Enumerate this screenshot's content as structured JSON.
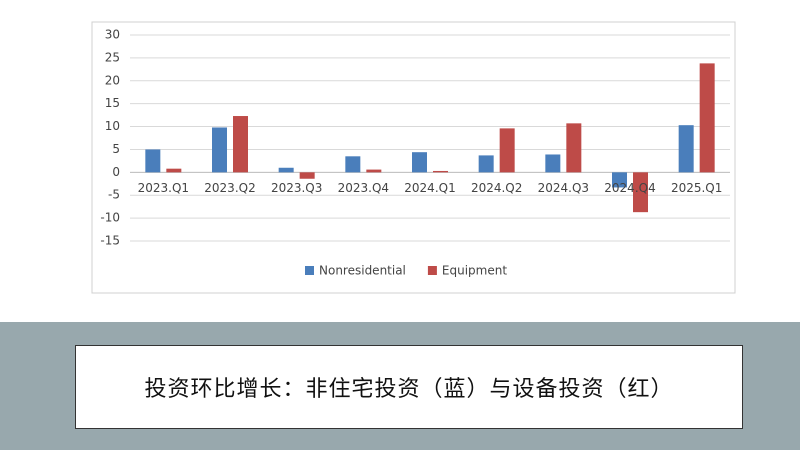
{
  "chart_data": {
    "type": "bar",
    "categories": [
      "2023.Q1",
      "2023.Q2",
      "2023.Q3",
      "2023.Q4",
      "2024.Q1",
      "2024.Q2",
      "2024.Q3",
      "2024.Q4",
      "2025.Q1"
    ],
    "series": [
      {
        "name": "Nonresidential",
        "color": "#4a7ebb",
        "values": [
          5.0,
          9.8,
          1.0,
          3.5,
          4.4,
          3.7,
          3.9,
          -3.3,
          10.3
        ]
      },
      {
        "name": "Equipment",
        "color": "#be4b48",
        "values": [
          0.8,
          12.3,
          -1.4,
          0.6,
          0.3,
          9.6,
          10.7,
          -8.7,
          23.8
        ]
      }
    ],
    "ylim": [
      -15,
      30
    ],
    "yticks": [
      -15,
      -10,
      -5,
      0,
      5,
      10,
      15,
      20,
      25,
      30
    ],
    "grid": true,
    "legend": "bottom"
  },
  "caption": "投资环比增长：非住宅投资（蓝）与设备投资（红）"
}
